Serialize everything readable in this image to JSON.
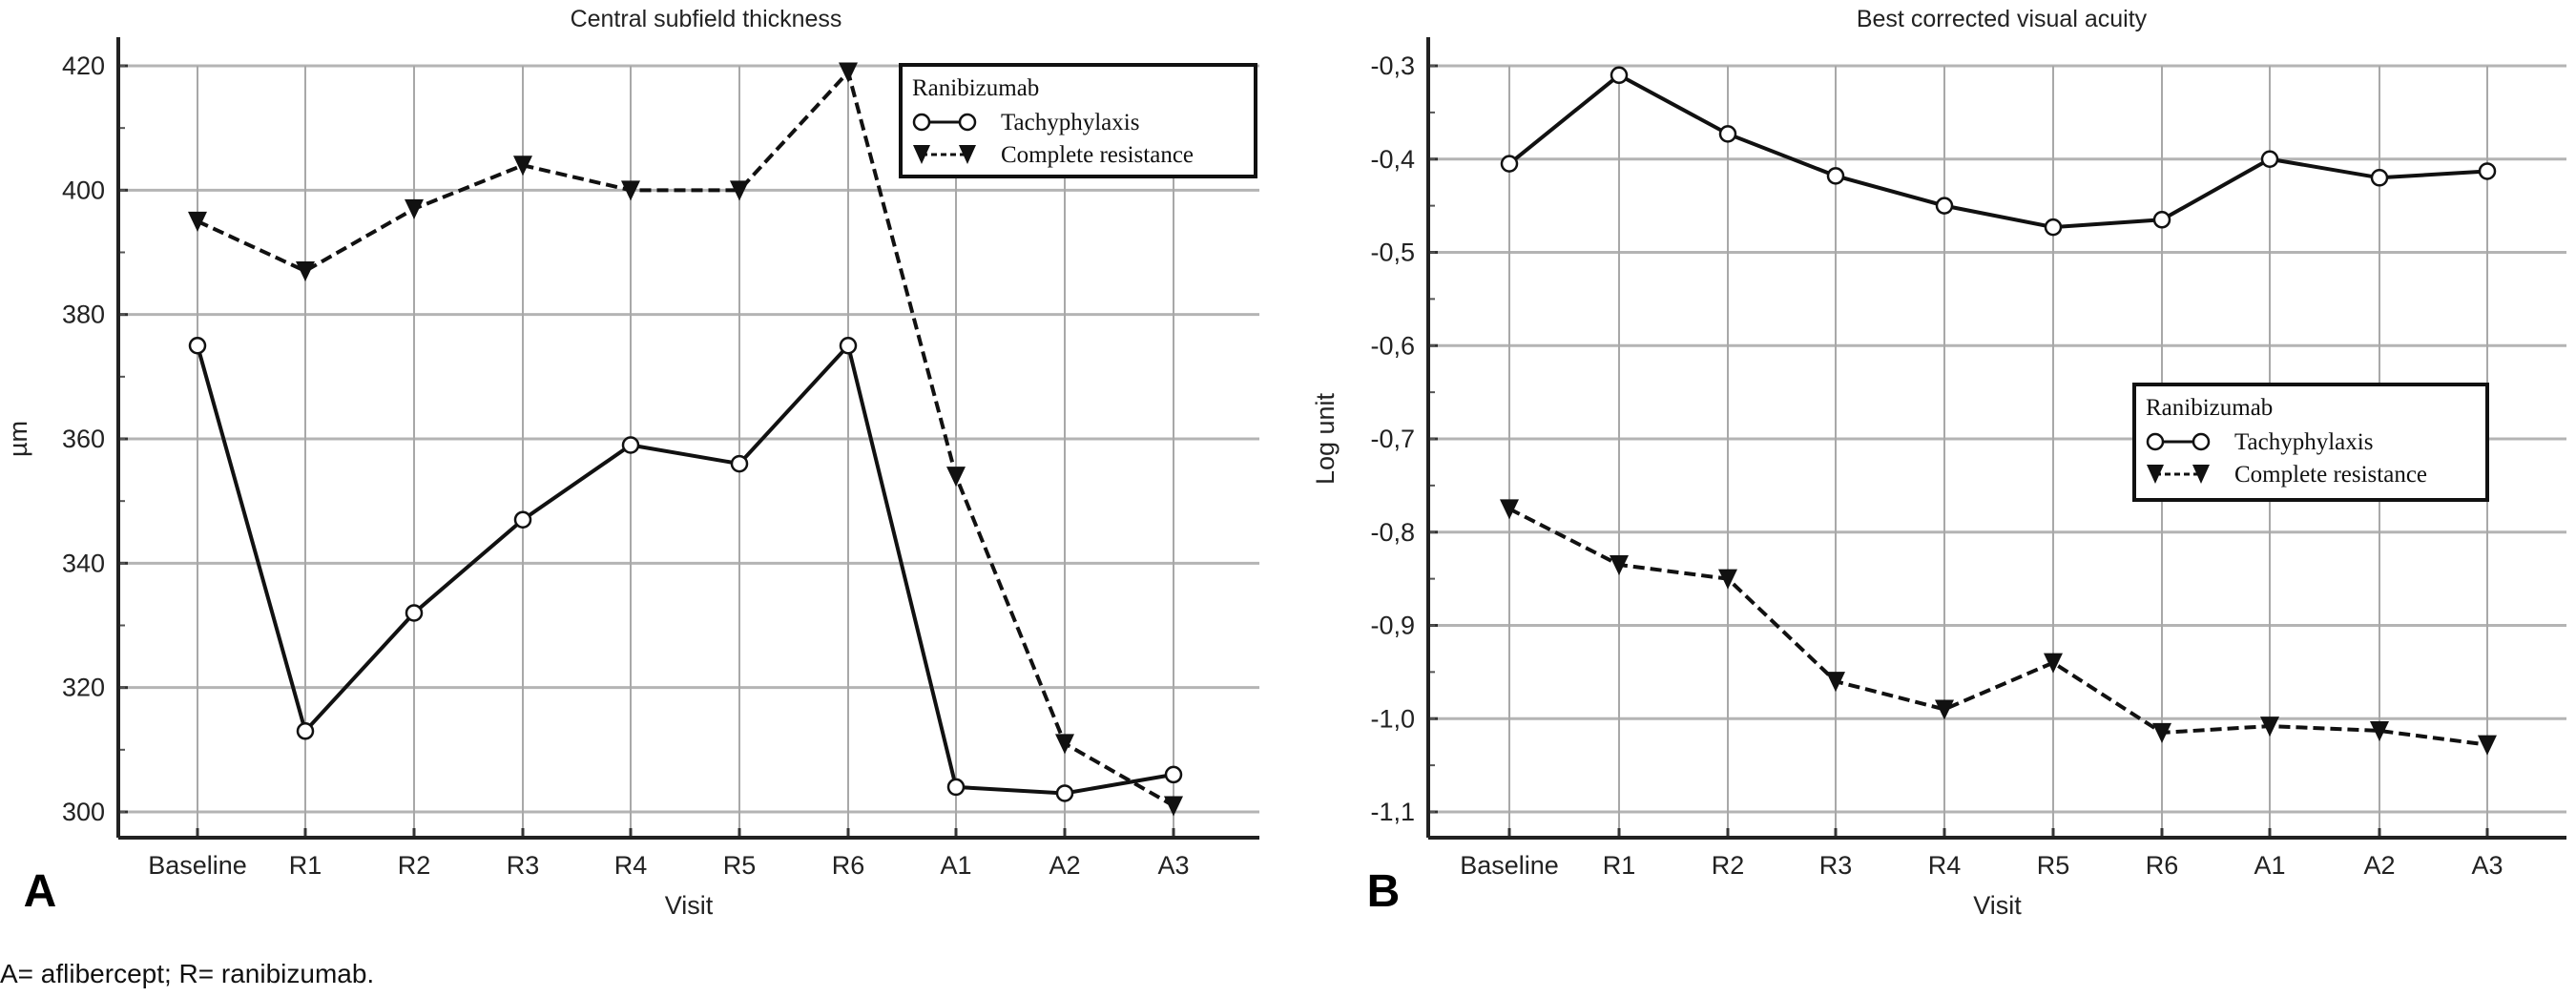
{
  "caption": "A= aflibercept; R= ranibizumab.",
  "chart_data": [
    {
      "type": "line",
      "panel": "A",
      "title": "Central subfield thickness",
      "xlabel": "Visit",
      "ylabel": "µm",
      "categories": [
        "Baseline",
        "R1",
        "R2",
        "R3",
        "R4",
        "R5",
        "R6",
        "A1",
        "A2",
        "A3"
      ],
      "ylim": [
        300,
        420
      ],
      "yticks": [
        300,
        320,
        340,
        360,
        380,
        400,
        420
      ],
      "ytick_labels": [
        "300",
        "320",
        "340",
        "360",
        "380",
        "400",
        "420"
      ],
      "minor_step": 10,
      "grid": true,
      "legend": {
        "title": "Ranibizumab",
        "placement": "top-right"
      },
      "series": [
        {
          "name": "Tachyphylaxis",
          "marker": "open-circle",
          "line": "solid",
          "values": [
            375,
            313,
            332,
            347,
            359,
            356,
            375,
            304,
            303,
            306
          ]
        },
        {
          "name": "Complete resistance",
          "marker": "filled-down-triangle",
          "line": "dashed",
          "values": [
            395,
            387,
            397,
            404,
            400,
            400,
            419,
            354,
            311,
            301
          ]
        }
      ]
    },
    {
      "type": "line",
      "panel": "B",
      "title": "Best corrected visual acuity",
      "xlabel": "Visit",
      "ylabel": "Log unit",
      "categories": [
        "Baseline",
        "R1",
        "R2",
        "R3",
        "R4",
        "R5",
        "R6",
        "A1",
        "A2",
        "A3"
      ],
      "ylim": [
        -1.1,
        -0.3
      ],
      "yticks": [
        -1.1,
        -1.0,
        -0.9,
        -0.8,
        -0.7,
        -0.6,
        -0.5,
        -0.4,
        -0.3
      ],
      "ytick_labels": [
        "-1,1",
        "-1,0",
        "-0,9",
        "-0,8",
        "-0,7",
        "-0,6",
        "-0,5",
        "-0,4",
        "-0,3"
      ],
      "minor_step": 0.05,
      "grid": true,
      "legend": {
        "title": "Ranibizumab",
        "placement": "center-right"
      },
      "series": [
        {
          "name": "Tachyphylaxis",
          "marker": "open-circle",
          "line": "solid",
          "values": [
            -0.405,
            -0.31,
            -0.373,
            -0.418,
            -0.45,
            -0.473,
            -0.465,
            -0.4,
            -0.42,
            -0.413
          ]
        },
        {
          "name": "Complete resistance",
          "marker": "filled-down-triangle",
          "line": "dashed",
          "values": [
            -0.775,
            -0.835,
            -0.85,
            -0.96,
            -0.99,
            -0.94,
            -1.015,
            -1.008,
            -1.013,
            -1.028
          ]
        }
      ]
    }
  ]
}
